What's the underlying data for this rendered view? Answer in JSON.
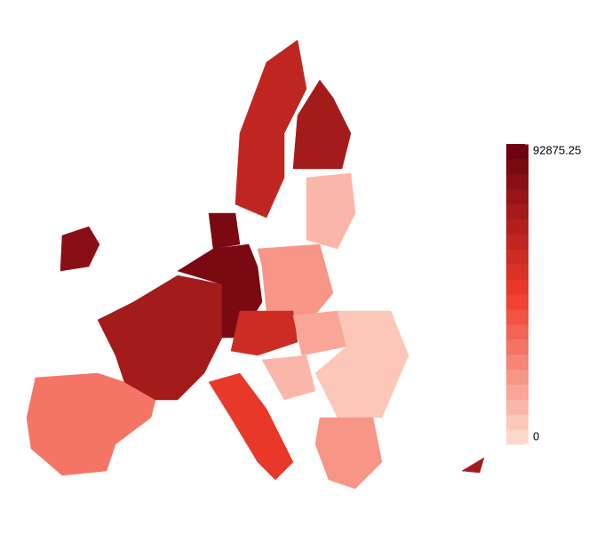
{
  "chart_data": {
    "type": "choropleth",
    "values": [
      30000,
      80000,
      70000,
      88000,
      85000,
      65000,
      72000,
      12000,
      20000,
      60000,
      15000,
      8000,
      50000,
      20000,
      70000,
      12000
    ],
    "colorbar": {
      "lim": [
        0,
        92875.25
      ],
      "ticks": [
        0,
        92875.25
      ],
      "colors": [
        "#fee0d2",
        "#ef3b2c",
        "#67000d"
      ]
    }
  }
}
